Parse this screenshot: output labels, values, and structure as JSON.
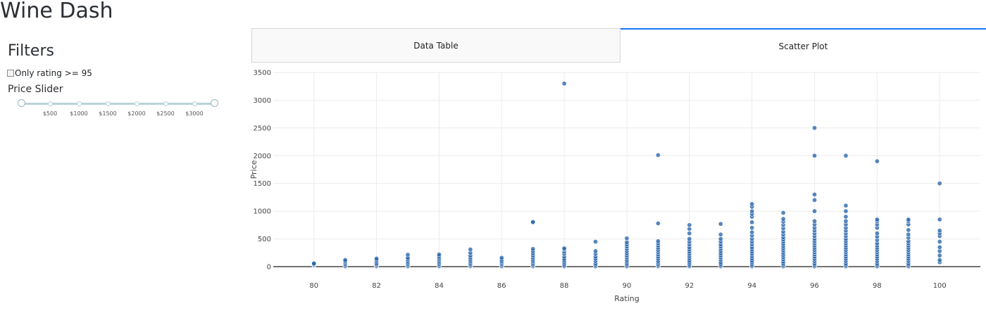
{
  "app": {
    "title": "Wine Dash"
  },
  "filters": {
    "title": "Filters",
    "checkbox_label": "Only rating >= 95",
    "slider_label": "Price Slider",
    "slider_marks": [
      "$500",
      "$1000",
      "$1500",
      "$2000",
      "$2500",
      "$3000"
    ]
  },
  "tabs": [
    {
      "label": "Data Table"
    },
    {
      "label": "Scatter Plot"
    }
  ],
  "colors": {
    "marker": "#1f5fa8",
    "tab_accent": "#1975fa"
  },
  "chart_data": {
    "type": "scatter",
    "title": "",
    "xlabel": "Rating",
    "ylabel": "Price",
    "xlim": [
      78.7,
      101.3
    ],
    "ylim": [
      0,
      3500
    ],
    "x_ticks": [
      80,
      82,
      84,
      86,
      88,
      90,
      92,
      94,
      96,
      98,
      100
    ],
    "y_ticks": [
      0,
      500,
      1000,
      1500,
      2000,
      2500,
      3000,
      3500
    ],
    "grid": true,
    "points": [
      [
        80,
        20
      ],
      [
        80,
        30
      ],
      [
        80,
        45
      ],
      [
        80,
        60
      ],
      [
        81,
        5
      ],
      [
        81,
        25
      ],
      [
        81,
        45
      ],
      [
        81,
        70
      ],
      [
        81,
        95
      ],
      [
        81,
        120
      ],
      [
        82,
        5
      ],
      [
        82,
        20
      ],
      [
        82,
        40
      ],
      [
        82,
        60
      ],
      [
        82,
        90
      ],
      [
        82,
        120
      ],
      [
        82,
        145
      ],
      [
        83,
        5
      ],
      [
        83,
        25
      ],
      [
        83,
        45
      ],
      [
        83,
        70
      ],
      [
        83,
        100
      ],
      [
        83,
        130
      ],
      [
        83,
        160
      ],
      [
        83,
        215
      ],
      [
        84,
        5
      ],
      [
        84,
        25
      ],
      [
        84,
        45
      ],
      [
        84,
        70
      ],
      [
        84,
        100
      ],
      [
        84,
        130
      ],
      [
        84,
        160
      ],
      [
        84,
        190
      ],
      [
        84,
        220
      ],
      [
        85,
        5
      ],
      [
        85,
        20
      ],
      [
        85,
        40
      ],
      [
        85,
        65
      ],
      [
        85,
        95
      ],
      [
        85,
        125
      ],
      [
        85,
        160
      ],
      [
        85,
        200
      ],
      [
        85,
        250
      ],
      [
        85,
        310
      ],
      [
        86,
        5
      ],
      [
        86,
        25
      ],
      [
        86,
        45
      ],
      [
        86,
        70
      ],
      [
        86,
        95
      ],
      [
        86,
        125
      ],
      [
        86,
        160
      ],
      [
        87,
        5
      ],
      [
        87,
        20
      ],
      [
        87,
        40
      ],
      [
        87,
        65
      ],
      [
        87,
        95
      ],
      [
        87,
        125
      ],
      [
        87,
        160
      ],
      [
        87,
        200
      ],
      [
        87,
        240
      ],
      [
        87,
        280
      ],
      [
        87,
        320
      ],
      [
        87,
        795
      ],
      [
        87,
        805
      ],
      [
        88,
        5
      ],
      [
        88,
        25
      ],
      [
        88,
        50
      ],
      [
        88,
        80
      ],
      [
        88,
        110
      ],
      [
        88,
        140
      ],
      [
        88,
        180
      ],
      [
        88,
        230
      ],
      [
        88,
        270
      ],
      [
        88,
        310
      ],
      [
        88,
        330
      ],
      [
        88,
        3300
      ],
      [
        89,
        5
      ],
      [
        89,
        30
      ],
      [
        89,
        60
      ],
      [
        89,
        100
      ],
      [
        89,
        140
      ],
      [
        89,
        180
      ],
      [
        89,
        230
      ],
      [
        89,
        280
      ],
      [
        89,
        450
      ],
      [
        90,
        5
      ],
      [
        90,
        30
      ],
      [
        90,
        60
      ],
      [
        90,
        90
      ],
      [
        90,
        120
      ],
      [
        90,
        160
      ],
      [
        90,
        200
      ],
      [
        90,
        240
      ],
      [
        90,
        280
      ],
      [
        90,
        320
      ],
      [
        90,
        360
      ],
      [
        90,
        400
      ],
      [
        90,
        440
      ],
      [
        90,
        510
      ],
      [
        91,
        5
      ],
      [
        91,
        20
      ],
      [
        91,
        40
      ],
      [
        91,
        70
      ],
      [
        91,
        100
      ],
      [
        91,
        140
      ],
      [
        91,
        180
      ],
      [
        91,
        220
      ],
      [
        91,
        260
      ],
      [
        91,
        300
      ],
      [
        91,
        340
      ],
      [
        91,
        380
      ],
      [
        91,
        420
      ],
      [
        91,
        460
      ],
      [
        91,
        780
      ],
      [
        91,
        2010
      ],
      [
        92,
        5
      ],
      [
        92,
        25
      ],
      [
        92,
        50
      ],
      [
        92,
        80
      ],
      [
        92,
        110
      ],
      [
        92,
        150
      ],
      [
        92,
        190
      ],
      [
        92,
        230
      ],
      [
        92,
        270
      ],
      [
        92,
        310
      ],
      [
        92,
        350
      ],
      [
        92,
        400
      ],
      [
        92,
        450
      ],
      [
        92,
        500
      ],
      [
        92,
        600
      ],
      [
        92,
        680
      ],
      [
        92,
        750
      ],
      [
        93,
        5
      ],
      [
        93,
        25
      ],
      [
        93,
        50
      ],
      [
        93,
        80
      ],
      [
        93,
        120
      ],
      [
        93,
        160
      ],
      [
        93,
        200
      ],
      [
        93,
        240
      ],
      [
        93,
        280
      ],
      [
        93,
        320
      ],
      [
        93,
        360
      ],
      [
        93,
        400
      ],
      [
        93,
        450
      ],
      [
        93,
        500
      ],
      [
        93,
        580
      ],
      [
        93,
        770
      ],
      [
        94,
        5
      ],
      [
        94,
        25
      ],
      [
        94,
        50
      ],
      [
        94,
        80
      ],
      [
        94,
        110
      ],
      [
        94,
        150
      ],
      [
        94,
        190
      ],
      [
        94,
        230
      ],
      [
        94,
        270
      ],
      [
        94,
        310
      ],
      [
        94,
        350
      ],
      [
        94,
        400
      ],
      [
        94,
        450
      ],
      [
        94,
        500
      ],
      [
        94,
        560
      ],
      [
        94,
        620
      ],
      [
        94,
        700
      ],
      [
        94,
        800
      ],
      [
        94,
        900
      ],
      [
        94,
        950
      ],
      [
        94,
        1000
      ],
      [
        94,
        1080
      ],
      [
        94,
        1130
      ],
      [
        95,
        5
      ],
      [
        95,
        30
      ],
      [
        95,
        60
      ],
      [
        95,
        90
      ],
      [
        95,
        130
      ],
      [
        95,
        170
      ],
      [
        95,
        210
      ],
      [
        95,
        250
      ],
      [
        95,
        290
      ],
      [
        95,
        330
      ],
      [
        95,
        370
      ],
      [
        95,
        410
      ],
      [
        95,
        450
      ],
      [
        95,
        490
      ],
      [
        95,
        530
      ],
      [
        95,
        580
      ],
      [
        95,
        630
      ],
      [
        95,
        690
      ],
      [
        95,
        750
      ],
      [
        95,
        810
      ],
      [
        95,
        860
      ],
      [
        95,
        970
      ],
      [
        96,
        5
      ],
      [
        96,
        30
      ],
      [
        96,
        60
      ],
      [
        96,
        100
      ],
      [
        96,
        140
      ],
      [
        96,
        180
      ],
      [
        96,
        220
      ],
      [
        96,
        260
      ],
      [
        96,
        300
      ],
      [
        96,
        340
      ],
      [
        96,
        380
      ],
      [
        96,
        420
      ],
      [
        96,
        460
      ],
      [
        96,
        500
      ],
      [
        96,
        550
      ],
      [
        96,
        600
      ],
      [
        96,
        650
      ],
      [
        96,
        700
      ],
      [
        96,
        760
      ],
      [
        96,
        820
      ],
      [
        96,
        1000
      ],
      [
        96,
        1200
      ],
      [
        96,
        1300
      ],
      [
        96,
        2000
      ],
      [
        96,
        2500
      ],
      [
        97,
        5
      ],
      [
        97,
        30
      ],
      [
        97,
        60
      ],
      [
        97,
        100
      ],
      [
        97,
        140
      ],
      [
        97,
        180
      ],
      [
        97,
        220
      ],
      [
        97,
        260
      ],
      [
        97,
        300
      ],
      [
        97,
        340
      ],
      [
        97,
        380
      ],
      [
        97,
        420
      ],
      [
        97,
        460
      ],
      [
        97,
        500
      ],
      [
        97,
        550
      ],
      [
        97,
        600
      ],
      [
        97,
        650
      ],
      [
        97,
        700
      ],
      [
        97,
        760
      ],
      [
        97,
        820
      ],
      [
        97,
        900
      ],
      [
        97,
        1000
      ],
      [
        97,
        1100
      ],
      [
        97,
        2000
      ],
      [
        98,
        5
      ],
      [
        98,
        30
      ],
      [
        98,
        60
      ],
      [
        98,
        100
      ],
      [
        98,
        140
      ],
      [
        98,
        180
      ],
      [
        98,
        220
      ],
      [
        98,
        260
      ],
      [
        98,
        300
      ],
      [
        98,
        340
      ],
      [
        98,
        380
      ],
      [
        98,
        420
      ],
      [
        98,
        480
      ],
      [
        98,
        540
      ],
      [
        98,
        600
      ],
      [
        98,
        700
      ],
      [
        98,
        760
      ],
      [
        98,
        820
      ],
      [
        98,
        850
      ],
      [
        98,
        1900
      ],
      [
        99,
        5
      ],
      [
        99,
        30
      ],
      [
        99,
        60
      ],
      [
        99,
        100
      ],
      [
        99,
        140
      ],
      [
        99,
        180
      ],
      [
        99,
        220
      ],
      [
        99,
        260
      ],
      [
        99,
        300
      ],
      [
        99,
        340
      ],
      [
        99,
        380
      ],
      [
        99,
        420
      ],
      [
        99,
        460
      ],
      [
        99,
        520
      ],
      [
        99,
        580
      ],
      [
        99,
        660
      ],
      [
        99,
        760
      ],
      [
        99,
        820
      ],
      [
        99,
        850
      ],
      [
        100,
        80
      ],
      [
        100,
        120
      ],
      [
        100,
        200
      ],
      [
        100,
        280
      ],
      [
        100,
        350
      ],
      [
        100,
        450
      ],
      [
        100,
        550
      ],
      [
        100,
        600
      ],
      [
        100,
        650
      ],
      [
        100,
        850
      ],
      [
        100,
        1500
      ]
    ]
  }
}
